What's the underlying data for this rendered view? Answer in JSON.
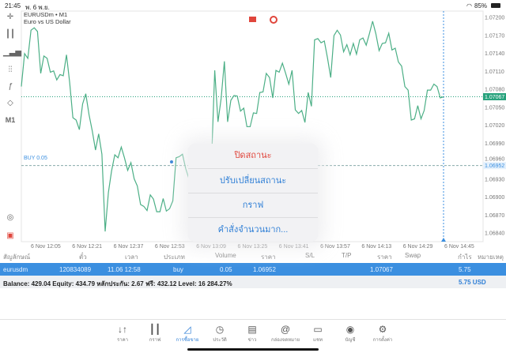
{
  "status_bar": {
    "time": "21:45",
    "date": "พ. 6 พ.ย.",
    "battery": "85%"
  },
  "chart": {
    "symbol": "EURUSDm • M1",
    "description": "Euro vs US Dollar",
    "timeframe_button": "M1",
    "buy_line_label": "BUY 0.05",
    "bid_tag": "1.07067",
    "open_tag": "1.06952",
    "line_color": "#4caf86",
    "bid_color": "#26a17b",
    "buy_color": "#3b8fe0"
  },
  "chart_data": {
    "type": "line",
    "y_ticks": [
      "1.07200",
      "1.07170",
      "1.07140",
      "1.07110",
      "1.07080",
      "1.07050",
      "1.07020",
      "1.06990",
      "1.06960",
      "1.06930",
      "1.06900",
      "1.06870",
      "1.06840"
    ],
    "x_ticks": [
      "6 Nov 12:05",
      "6 Nov 12:21",
      "6 Nov 12:37",
      "6 Nov 12:53",
      "6 Nov 13:09",
      "6 Nov 13:25",
      "6 Nov 13:41",
      "6 Nov 13:57",
      "6 Nov 14:13",
      "6 Nov 14:29",
      "6 Nov 14:45"
    ],
    "ylim": [
      1.06825,
      1.0721
    ],
    "bid": 1.07067,
    "buy_price": 1.06952,
    "values": [
      1.07084,
      1.07139,
      1.07131,
      1.07178,
      1.07182,
      1.07176,
      1.07106,
      1.07135,
      1.07131,
      1.07108,
      1.0711,
      1.07095,
      1.07104,
      1.07102,
      1.07137,
      1.07091,
      1.07032,
      1.07028,
      1.07012,
      1.07055,
      1.07072,
      1.07037,
      1.0701,
      1.06978,
      1.07005,
      1.06971,
      1.06842,
      1.06907,
      1.06943,
      1.0697,
      1.06965,
      1.06983,
      1.06965,
      1.06944,
      1.06957,
      1.0693,
      1.06918,
      1.06887,
      1.06884,
      1.06877,
      1.06903,
      1.06896,
      1.06875,
      1.06875,
      1.06897,
      1.06876,
      1.0688,
      1.06893,
      1.06965,
      1.06967,
      1.06971,
      1.06947,
      1.0693,
      1.06887,
      1.06873,
      1.06862,
      1.06861,
      1.06896,
      1.06866,
      1.06957,
      1.07111,
      1.07025,
      1.07064,
      1.07126,
      1.07025,
      1.07061,
      1.07069,
      1.07068,
      1.07043,
      1.07048,
      1.07017,
      1.07017,
      1.0704,
      1.07039,
      1.07074,
      1.07075,
      1.07106,
      1.07099,
      1.07065,
      1.07111,
      1.07108,
      1.07123,
      1.07106,
      1.07088,
      1.07111,
      1.07045,
      1.07039,
      1.07044,
      1.07024,
      1.07074,
      1.07051,
      1.07162,
      1.07164,
      1.07157,
      1.0716,
      1.07131,
      1.07099,
      1.07169,
      1.07178,
      1.0717,
      1.07142,
      1.07154,
      1.07137,
      1.07156,
      1.07138,
      1.07162,
      1.07165,
      1.07153,
      1.07172,
      1.07193,
      1.07172,
      1.07144,
      1.07156,
      1.07157,
      1.07173,
      1.07145,
      1.07148,
      1.07125,
      1.07118,
      1.07084,
      1.07078,
      1.07028,
      1.0703,
      1.07052,
      1.0703,
      1.07044,
      1.07078,
      1.07078,
      1.07088,
      1.07084,
      1.07065,
      1.07067
    ]
  },
  "context_menu": {
    "items": [
      "ปิดสถานะ",
      "ปรับเปลี่ยนสถานะ",
      "กราฟ",
      "คำสั่งจำนวนมาก..."
    ]
  },
  "table": {
    "headers": [
      "สัญลักษณ์",
      "ตั๋ว",
      "เวลา",
      "ประเภท",
      "Volume",
      "ราคา",
      "S/L",
      "T/P",
      "ราคา",
      "Swap",
      "กำไร",
      "หมายเหตุ"
    ],
    "row": {
      "symbol": "eurusdm",
      "ticket": "120834089",
      "time": "11.06 12:58",
      "type": "buy",
      "volume": "0.05",
      "open_price": "1.06952",
      "price": "1.07067",
      "profit": "5.75"
    },
    "balance": "Balance: 429.04 Equity: 434.79 หลักประกัน: 2.67 ฟรี: 432.12 Level: 16 284.27%",
    "total": "5.75  USD"
  },
  "tabs": [
    {
      "label": "ราคา",
      "icon": "↓↑"
    },
    {
      "label": "กราฟ",
      "icon": "candles"
    },
    {
      "label": "การซื้อขาย",
      "icon": "trade-chart",
      "active": true
    },
    {
      "label": "ประวัติ",
      "icon": "history"
    },
    {
      "label": "ข่าว",
      "icon": "news"
    },
    {
      "label": "กล่องจดหมาย",
      "icon": "@"
    },
    {
      "label": "แชท",
      "icon": "chat"
    },
    {
      "label": "บัญชี",
      "icon": "account"
    },
    {
      "label": "การตั้งค่า",
      "icon": "gear"
    }
  ]
}
